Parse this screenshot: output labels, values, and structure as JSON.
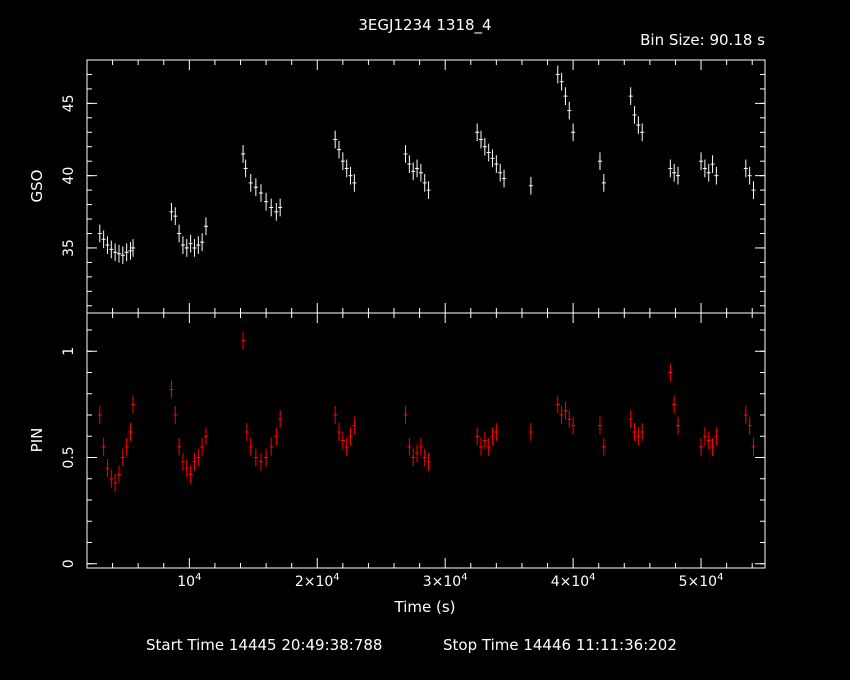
{
  "title": "3EGJ1234 1318_4",
  "bin_size": "Bin Size: 90.18 s",
  "xlabel": "Time (s)",
  "footer": {
    "start": "Start Time 14445 20:49:38:788",
    "stop": "Stop Time 14446 11:11:36:202"
  },
  "colors": {
    "background": "#000000",
    "gso": "#ffffff",
    "pin": "#ff0000",
    "axes": "#ffffff"
  },
  "chart_data": [
    {
      "type": "scatter",
      "ylabel": "GSO",
      "xlim": [
        2000,
        55000
      ],
      "ylim": [
        30.5,
        48
      ],
      "ytick_values": [
        35,
        40,
        45
      ],
      "ytick_labels": [
        "35",
        "40",
        "45"
      ],
      "points": [
        [
          3000,
          36.0
        ],
        [
          3300,
          35.6
        ],
        [
          3600,
          35.2
        ],
        [
          3900,
          34.9
        ],
        [
          4200,
          34.7
        ],
        [
          4500,
          34.6
        ],
        [
          4800,
          34.5
        ],
        [
          5100,
          34.7
        ],
        [
          5400,
          34.8
        ],
        [
          5600,
          35.0
        ],
        [
          8600,
          37.5
        ],
        [
          8900,
          37.2
        ],
        [
          9200,
          36.0
        ],
        [
          9500,
          35.2
        ],
        [
          9800,
          35.0
        ],
        [
          10100,
          35.3
        ],
        [
          10400,
          35.0
        ],
        [
          10700,
          35.2
        ],
        [
          11000,
          35.4
        ],
        [
          11300,
          36.5
        ],
        [
          14200,
          41.5
        ],
        [
          14400,
          40.5
        ],
        [
          14800,
          39.5
        ],
        [
          15200,
          39.2
        ],
        [
          15600,
          38.8
        ],
        [
          16000,
          38.2
        ],
        [
          16400,
          37.8
        ],
        [
          16800,
          37.5
        ],
        [
          17100,
          37.8
        ],
        [
          21400,
          42.5
        ],
        [
          21700,
          41.8
        ],
        [
          22000,
          41.0
        ],
        [
          22300,
          40.5
        ],
        [
          22600,
          40.0
        ],
        [
          22900,
          39.5
        ],
        [
          26900,
          41.5
        ],
        [
          27200,
          40.8
        ],
        [
          27500,
          40.3
        ],
        [
          27800,
          40.5
        ],
        [
          28100,
          40.2
        ],
        [
          28400,
          39.5
        ],
        [
          28700,
          39.0
        ],
        [
          32500,
          43.0
        ],
        [
          32800,
          42.5
        ],
        [
          33100,
          42.0
        ],
        [
          33400,
          41.6
        ],
        [
          33700,
          41.2
        ],
        [
          34000,
          40.8
        ],
        [
          34300,
          40.2
        ],
        [
          34600,
          39.8
        ],
        [
          36700,
          39.3
        ],
        [
          38800,
          47.0
        ],
        [
          39100,
          46.5
        ],
        [
          39400,
          45.5
        ],
        [
          39700,
          44.5
        ],
        [
          40000,
          43.0
        ],
        [
          42100,
          41.0
        ],
        [
          42400,
          39.5
        ],
        [
          44500,
          45.5
        ],
        [
          44800,
          44.2
        ],
        [
          45100,
          43.5
        ],
        [
          45400,
          43.0
        ],
        [
          47600,
          40.5
        ],
        [
          47900,
          40.2
        ],
        [
          48200,
          40.0
        ],
        [
          50000,
          41.0
        ],
        [
          50300,
          40.5
        ],
        [
          50600,
          40.2
        ],
        [
          50900,
          40.8
        ],
        [
          51200,
          40.0
        ],
        [
          53500,
          40.5
        ],
        [
          53800,
          40.0
        ],
        [
          54100,
          39.0
        ]
      ]
    },
    {
      "type": "scatter",
      "ylabel": "PIN",
      "xlim": [
        2000,
        55000
      ],
      "ylim": [
        -0.02,
        1.18
      ],
      "ytick_values": [
        0,
        0.5,
        1
      ],
      "ytick_labels": [
        "0",
        "0.5",
        "1"
      ],
      "points": [
        [
          3000,
          0.7
        ],
        [
          3300,
          0.55
        ],
        [
          3600,
          0.45
        ],
        [
          3900,
          0.4
        ],
        [
          4200,
          0.38
        ],
        [
          4500,
          0.42
        ],
        [
          4800,
          0.5
        ],
        [
          5100,
          0.55
        ],
        [
          5400,
          0.62
        ],
        [
          5600,
          0.75
        ],
        [
          8600,
          0.82
        ],
        [
          8900,
          0.7
        ],
        [
          9200,
          0.55
        ],
        [
          9500,
          0.48
        ],
        [
          9800,
          0.45
        ],
        [
          10100,
          0.42
        ],
        [
          10400,
          0.48
        ],
        [
          10700,
          0.5
        ],
        [
          11000,
          0.55
        ],
        [
          11300,
          0.6
        ],
        [
          14200,
          1.05
        ],
        [
          14500,
          0.62
        ],
        [
          14800,
          0.55
        ],
        [
          15200,
          0.5
        ],
        [
          15600,
          0.48
        ],
        [
          16000,
          0.5
        ],
        [
          16400,
          0.55
        ],
        [
          16800,
          0.6
        ],
        [
          17100,
          0.68
        ],
        [
          21400,
          0.7
        ],
        [
          21700,
          0.62
        ],
        [
          22000,
          0.58
        ],
        [
          22300,
          0.55
        ],
        [
          22600,
          0.6
        ],
        [
          22900,
          0.65
        ],
        [
          26900,
          0.7
        ],
        [
          27200,
          0.55
        ],
        [
          27500,
          0.5
        ],
        [
          27800,
          0.52
        ],
        [
          28100,
          0.55
        ],
        [
          28400,
          0.5
        ],
        [
          28700,
          0.48
        ],
        [
          32500,
          0.6
        ],
        [
          32800,
          0.55
        ],
        [
          33100,
          0.58
        ],
        [
          33400,
          0.55
        ],
        [
          33700,
          0.6
        ],
        [
          34000,
          0.62
        ],
        [
          36700,
          0.62
        ],
        [
          38800,
          0.75
        ],
        [
          39100,
          0.7
        ],
        [
          39400,
          0.72
        ],
        [
          39700,
          0.68
        ],
        [
          40000,
          0.65
        ],
        [
          42100,
          0.65
        ],
        [
          42400,
          0.55
        ],
        [
          44500,
          0.68
        ],
        [
          44800,
          0.62
        ],
        [
          45100,
          0.6
        ],
        [
          45400,
          0.62
        ],
        [
          47600,
          0.9
        ],
        [
          47900,
          0.75
        ],
        [
          48200,
          0.65
        ],
        [
          50000,
          0.55
        ],
        [
          50300,
          0.6
        ],
        [
          50600,
          0.58
        ],
        [
          50900,
          0.55
        ],
        [
          51200,
          0.6
        ],
        [
          53500,
          0.7
        ],
        [
          53800,
          0.65
        ],
        [
          54100,
          0.55
        ]
      ]
    }
  ],
  "xticks_major": [
    {
      "x": 10000,
      "base": "10",
      "exp": "4"
    },
    {
      "x": 20000,
      "base": "2×10",
      "exp": "4"
    },
    {
      "x": 30000,
      "base": "3×10",
      "exp": "4"
    },
    {
      "x": 40000,
      "base": "4×10",
      "exp": "4"
    },
    {
      "x": 50000,
      "base": "5×10",
      "exp": "4"
    }
  ]
}
